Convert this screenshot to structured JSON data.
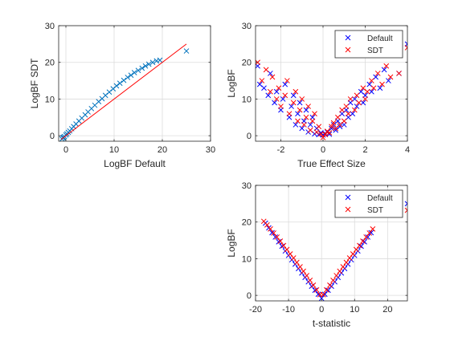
{
  "chart_data": [
    {
      "type": "scatter",
      "xlabel": "LogBF Default",
      "ylabel": "LogBF SDT",
      "xlim": [
        -1.5,
        30
      ],
      "ylim": [
        -1.5,
        30
      ],
      "xticks": [
        0,
        10,
        20,
        30
      ],
      "yticks": [
        0,
        10,
        20,
        30
      ],
      "grid": true,
      "series": [
        {
          "color": "#0072BD",
          "marker": "x",
          "x": [
            -0.8,
            -0.6,
            -0.5,
            -0.3,
            0,
            0.2,
            0.5,
            0.8,
            1.2,
            1.6,
            2.1,
            2.7,
            3.3,
            4,
            4.6,
            5.3,
            6,
            6.8,
            7.5,
            8.2,
            9,
            9.8,
            10.5,
            11.2,
            12,
            12.8,
            13.5,
            14.2,
            15,
            15.8,
            16.5,
            17.2,
            18,
            18.8,
            19.5,
            25
          ],
          "y": [
            -0.9,
            -0.6,
            -0.4,
            -0.2,
            0.2,
            0.5,
            0.9,
            1.3,
            1.9,
            2.5,
            3.2,
            4,
            4.8,
            5.7,
            6.5,
            7.4,
            8.3,
            9.3,
            10.1,
            11,
            11.9,
            12.8,
            13.6,
            14.3,
            15.1,
            15.9,
            16.5,
            17.2,
            17.8,
            18.4,
            19,
            19.5,
            20,
            20.4,
            20.6,
            23.1
          ]
        },
        {
          "color": "#FF0000",
          "marker": "line",
          "x": [
            -1,
            25
          ],
          "y": [
            -1,
            25
          ]
        }
      ]
    },
    {
      "type": "scatter",
      "xlabel": "True Effect Size",
      "ylabel": "LogBF",
      "xlim": [
        -3.2,
        4
      ],
      "ylim": [
        -1.5,
        30
      ],
      "xticks": [
        -2,
        0,
        2,
        4
      ],
      "yticks": [
        0,
        10,
        20,
        30
      ],
      "grid": true,
      "legend": "top-right",
      "series": [
        {
          "name": "Default",
          "color": "#0000FF",
          "marker": "x",
          "x": [
            -3.1,
            -3,
            -2.8,
            -2.6,
            -2.5,
            -2.3,
            -2.2,
            -2,
            -1.9,
            -1.8,
            -1.6,
            -1.5,
            -1.4,
            -1.3,
            -1.2,
            -1.1,
            -1,
            -0.9,
            -0.8,
            -0.7,
            -0.6,
            -0.5,
            -0.4,
            -0.3,
            -0.2,
            -0.1,
            0,
            0.1,
            0.2,
            0.3,
            0.4,
            0.5,
            0.6,
            0.7,
            0.8,
            0.9,
            1,
            1.1,
            1.2,
            1.3,
            1.4,
            1.5,
            1.6,
            1.8,
            1.9,
            2,
            2.2,
            2.3,
            2.5,
            2.7,
            2.9,
            3.1,
            3.6,
            4
          ],
          "y": [
            19,
            14,
            13,
            11,
            17,
            9,
            12,
            7,
            10,
            14,
            5,
            8,
            11,
            3,
            6,
            9,
            2,
            4,
            7,
            1,
            3,
            5,
            0.5,
            2,
            0.3,
            0.8,
            0.2,
            0.6,
            1,
            0.4,
            2,
            3,
            1.5,
            4,
            2.5,
            6,
            3,
            7,
            5,
            9,
            6,
            10,
            8,
            12,
            9,
            11,
            14,
            12,
            16,
            13,
            18,
            15,
            17,
            25
          ]
        },
        {
          "name": "SDT",
          "color": "#FF0000",
          "marker": "x",
          "x": [
            -3.1,
            -2.9,
            -2.7,
            -2.5,
            -2.4,
            -2.2,
            -2.1,
            -2,
            -1.8,
            -1.7,
            -1.6,
            -1.4,
            -1.3,
            -1.2,
            -1.1,
            -1,
            -0.9,
            -0.8,
            -0.7,
            -0.6,
            -0.5,
            -0.4,
            -0.3,
            -0.2,
            -0.1,
            0,
            0.1,
            0.2,
            0.3,
            0.4,
            0.5,
            0.6,
            0.7,
            0.8,
            0.9,
            1,
            1.1,
            1.2,
            1.3,
            1.5,
            1.6,
            1.7,
            1.9,
            2,
            2.1,
            2.3,
            2.4,
            2.6,
            2.8,
            3,
            3.2,
            3.6,
            4
          ],
          "y": [
            20,
            15,
            18,
            12,
            16,
            10,
            13,
            8,
            11,
            15,
            6,
            9,
            12,
            4,
            7,
            10,
            3,
            5,
            8,
            1.5,
            4,
            6,
            1,
            2.5,
            0.5,
            -0.5,
            0.3,
            1.2,
            0.8,
            2.5,
            3.5,
            2,
            5,
            3,
            7,
            4,
            8,
            6,
            10,
            7,
            11,
            9,
            13,
            10,
            12,
            15,
            13,
            17,
            14,
            19,
            16,
            17,
            24
          ]
        }
      ]
    },
    {
      "type": "scatter",
      "xlabel": "t-statistic",
      "ylabel": "LogBF",
      "xlim": [
        -20,
        26
      ],
      "ylim": [
        -1.5,
        30
      ],
      "xticks": [
        -20,
        -10,
        0,
        10,
        20
      ],
      "yticks": [
        0,
        10,
        20,
        30
      ],
      "grid": true,
      "legend": "top-right",
      "series": [
        {
          "name": "Default",
          "color": "#0000FF",
          "marker": "x",
          "x": [
            -17,
            -16,
            -15,
            -14,
            -13,
            -12,
            -11,
            -10,
            -9,
            -8,
            -7,
            -6,
            -5,
            -4,
            -3,
            -2,
            -1,
            0,
            1,
            2,
            3,
            4,
            5,
            6,
            7,
            8,
            9,
            10,
            11,
            12,
            13,
            14,
            15,
            26
          ],
          "y": [
            19.7,
            18.4,
            17.1,
            15.9,
            14.6,
            13.4,
            12.1,
            10.9,
            9.7,
            8.5,
            7.3,
            6.1,
            4.9,
            3.7,
            2.5,
            1.4,
            0.3,
            -0.8,
            0.3,
            1.4,
            2.5,
            3.7,
            4.9,
            6.1,
            7.3,
            8.5,
            9.7,
            10.9,
            12.1,
            13.4,
            14.6,
            15.9,
            17.1,
            25
          ]
        },
        {
          "name": "SDT",
          "color": "#FF0000",
          "marker": "x",
          "x": [
            -17.5,
            -16.5,
            -15.5,
            -14.5,
            -13.5,
            -12.5,
            -11.5,
            -10.5,
            -9.5,
            -8.5,
            -7.5,
            -6.5,
            -5.5,
            -4.5,
            -3.5,
            -2.5,
            -1.5,
            -0.5,
            0.5,
            1.5,
            2.5,
            3.5,
            4.5,
            5.5,
            6.5,
            7.5,
            8.5,
            9.5,
            10.5,
            11.5,
            12.5,
            13.5,
            14.5,
            15.5,
            26
          ],
          "y": [
            20.2,
            19.2,
            18.1,
            17,
            15.9,
            14.8,
            13.6,
            12.5,
            11.3,
            10.2,
            9,
            7.8,
            6.6,
            5.4,
            4.1,
            2.8,
            1.5,
            0.2,
            0.2,
            1.5,
            2.8,
            4.1,
            5.4,
            6.6,
            7.8,
            9,
            10.2,
            11.3,
            12.5,
            13.6,
            14.8,
            15.9,
            17,
            18.1,
            23.2
          ]
        }
      ]
    }
  ]
}
